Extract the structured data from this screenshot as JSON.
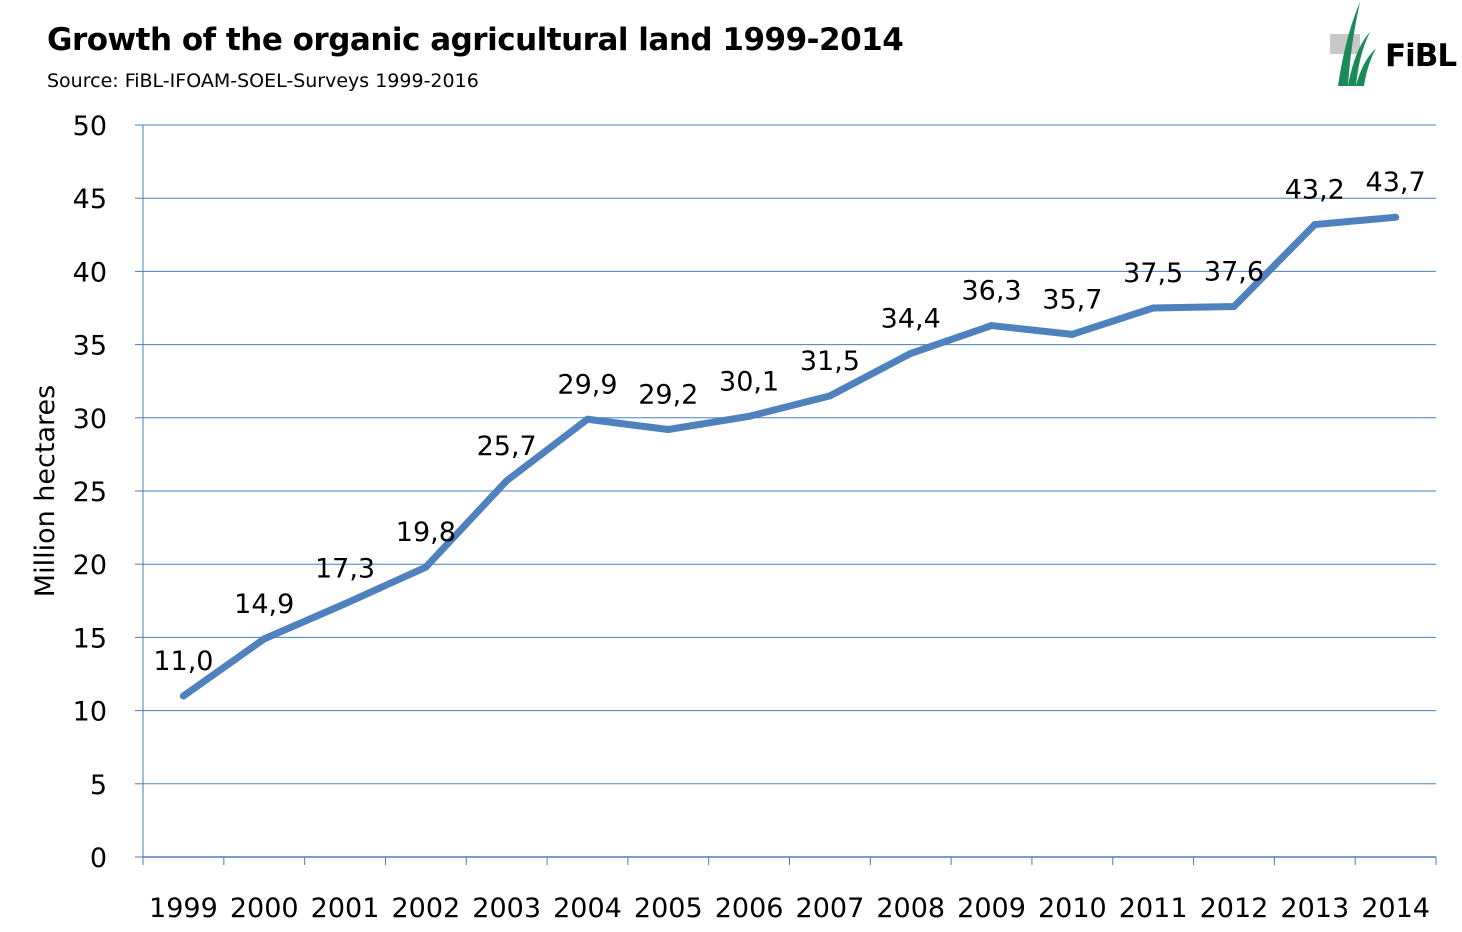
{
  "header": {
    "title": "Growth of the organic agricultural land 1999-2014",
    "subtitle": "Source: FiBL-IFOAM-SOEL-Surveys 1999-2016"
  },
  "logo": {
    "text": "FiBL",
    "icon": "fibl-grass-logo-icon",
    "accent": "#1a8a5a"
  },
  "chart_data": {
    "type": "line",
    "title": "Growth of the organic agricultural land 1999-2014",
    "xlabel": "",
    "ylabel": "Million hectares",
    "ylim": [
      0,
      50
    ],
    "yticks": [
      "0",
      "5",
      "10",
      "15",
      "20",
      "25",
      "30",
      "35",
      "40",
      "45",
      "50"
    ],
    "grid": true,
    "categories": [
      "1999",
      "2000",
      "2001",
      "2002",
      "2003",
      "2004",
      "2005",
      "2006",
      "2007",
      "2008",
      "2009",
      "2010",
      "2011",
      "2012",
      "2013",
      "2014"
    ],
    "series": [
      {
        "values": [
          11.0,
          14.9,
          17.3,
          19.8,
          25.7,
          29.9,
          29.2,
          30.1,
          31.5,
          34.4,
          36.3,
          35.7,
          37.5,
          37.6,
          43.2,
          43.7
        ],
        "labels": [
          "11,0",
          "14,9",
          "17,3",
          "19,8",
          "25,7",
          "29,9",
          "29,2",
          "30,1",
          "31,5",
          "34,4",
          "36,3",
          "35,7",
          "37,5",
          "37,6",
          "43,2",
          "43,7"
        ],
        "color": "#4f81bd"
      }
    ],
    "gridColor": "#4a7ebb"
  }
}
